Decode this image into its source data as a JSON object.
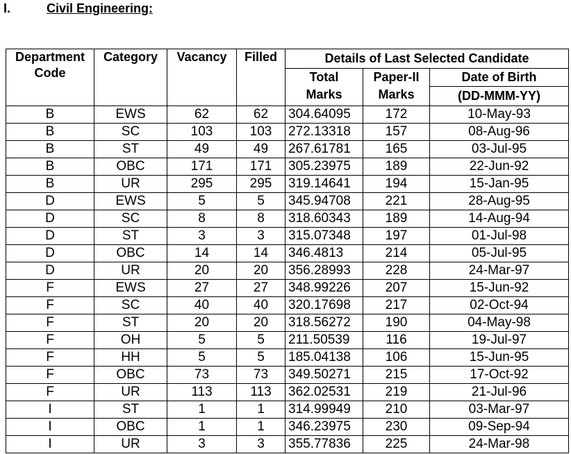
{
  "section": {
    "number": "I.",
    "title": "Civil Engineering:"
  },
  "table": {
    "headers": {
      "department_code": "Department Code",
      "category": "Category",
      "vacancy": "Vacancy",
      "filled": "Filled",
      "details_group": "Details of Last Selected Candidate",
      "total_marks": "Total Marks",
      "paper2_marks": "Paper-II Marks",
      "dob": "Date of Birth",
      "dob_format": "(DD-MMM-YY)"
    },
    "rows": [
      [
        "B",
        "EWS",
        "62",
        "62",
        "304.64095",
        "172",
        "10-May-93"
      ],
      [
        "B",
        "SC",
        "103",
        "103",
        "272.13318",
        "157",
        "08-Aug-96"
      ],
      [
        "B",
        "ST",
        "49",
        "49",
        "267.61781",
        "165",
        "03-Jul-95"
      ],
      [
        "B",
        "OBC",
        "171",
        "171",
        "305.23975",
        "189",
        "22-Jun-92"
      ],
      [
        "B",
        "UR",
        "295",
        "295",
        "319.14641",
        "194",
        "15-Jan-95"
      ],
      [
        "D",
        "EWS",
        "5",
        "5",
        "345.94708",
        "221",
        "28-Aug-95"
      ],
      [
        "D",
        "SC",
        "8",
        "8",
        "318.60343",
        "189",
        "14-Aug-94"
      ],
      [
        "D",
        "ST",
        "3",
        "3",
        "315.07348",
        "197",
        "01-Jul-98"
      ],
      [
        "D",
        "OBC",
        "14",
        "14",
        "346.4813",
        "214",
        "05-Jul-95"
      ],
      [
        "D",
        "UR",
        "20",
        "20",
        "356.28993",
        "228",
        "24-Mar-97"
      ],
      [
        "F",
        "EWS",
        "27",
        "27",
        "348.99226",
        "207",
        "15-Jun-92"
      ],
      [
        "F",
        "SC",
        "40",
        "40",
        "320.17698",
        "217",
        "02-Oct-94"
      ],
      [
        "F",
        "ST",
        "20",
        "20",
        "318.56272",
        "190",
        "04-May-98"
      ],
      [
        "F",
        "OH",
        "5",
        "5",
        "211.50539",
        "116",
        "19-Jul-97"
      ],
      [
        "F",
        "HH",
        "5",
        "5",
        "185.04138",
        "106",
        "15-Jun-95"
      ],
      [
        "F",
        "OBC",
        "73",
        "73",
        "349.50271",
        "215",
        "17-Oct-92"
      ],
      [
        "F",
        "UR",
        "113",
        "113",
        "362.02531",
        "219",
        "21-Jul-96"
      ],
      [
        "I",
        "ST",
        "1",
        "1",
        "314.99949",
        "210",
        "03-Mar-97"
      ],
      [
        "I",
        "OBC",
        "1",
        "1",
        "346.23975",
        "230",
        "09-Sep-94"
      ],
      [
        "I",
        "UR",
        "3",
        "3",
        "355.77836",
        "225",
        "24-Mar-98"
      ]
    ]
  }
}
